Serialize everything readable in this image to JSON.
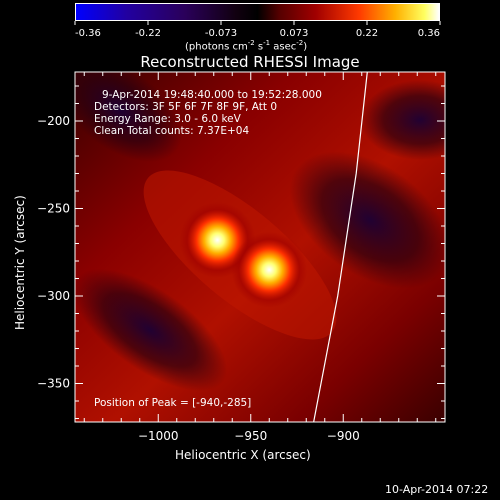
{
  "colorbar": {
    "ticks": [
      "-0.36",
      "-0.22",
      "-0.073",
      "0.073",
      "0.22",
      "0.36"
    ],
    "units_prefix": "(photons cm",
    "units_sup1": "-2",
    "units_mid": " s",
    "units_sup2": "-1",
    "units_mid2": " asec",
    "units_sup3": "-2",
    "units_suffix": ")"
  },
  "chart_data": {
    "type": "heatmap",
    "title": "Reconstructed RHESSI Image",
    "xlabel": "Heliocentric X (arcsec)",
    "ylabel": "Heliocentric Y (arcsec)",
    "xlim": [
      -1045,
      -845
    ],
    "ylim": [
      -372,
      -172
    ],
    "x_ticks": [
      -1000,
      -950,
      -900
    ],
    "y_ticks": [
      -200,
      -250,
      -300,
      -350
    ],
    "x_tick_labels": [
      "−1000",
      "−950",
      "−900"
    ],
    "y_tick_labels": [
      "−200",
      "−250",
      "−300",
      "−350"
    ],
    "colormap_range": [
      -0.36,
      0.36
    ],
    "sources": [
      {
        "x": -968,
        "y": -268,
        "peak": 0.36
      },
      {
        "x": -940,
        "y": -285,
        "peak": 0.36
      }
    ],
    "limb_curve": [
      [
        -887,
        -172
      ],
      [
        -893,
        -230
      ],
      [
        -903,
        -300
      ],
      [
        -916,
        -372
      ]
    ],
    "annotations": {
      "time": "9-Apr-2014 19:48:40.000 to 19:52:28.000",
      "detectors": "Detectors: 3F 5F 6F 7F 8F 9F, Att 0",
      "energy": "Energy Range: 3.0 - 6.0 keV",
      "clean": "Clean    Total counts: 7.37E+04",
      "peak": "Position of Peak = [-940,-285]"
    },
    "colors": {
      "limb": "#ffffff",
      "cmap": [
        "#0000ff",
        "#2a0070",
        "#000000",
        "#8a0000",
        "#ff4a00",
        "#ffe000",
        "#ffffff"
      ]
    }
  },
  "footer": {
    "timestamp": "10-Apr-2014 07:22"
  }
}
